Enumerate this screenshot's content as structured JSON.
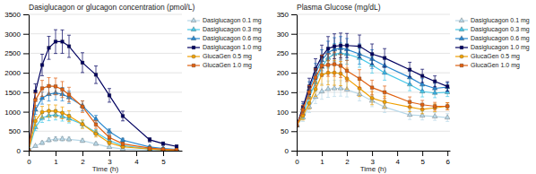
{
  "chart_data": [
    {
      "type": "line",
      "title": "Dasiglucagon or glucagon concentration (pmol/L)",
      "x_label": "Time (h)",
      "x": [
        0,
        0.25,
        0.5,
        0.75,
        1.0,
        1.25,
        1.5,
        2.0,
        2.5,
        3.0,
        3.5,
        4.5,
        5.0,
        5.5
      ],
      "series": [
        {
          "name": "Dasiglucagon 0.1 mg",
          "color": "#b8d8e8",
          "marker": "triangle",
          "values": [
            10,
            120,
            200,
            270,
            295,
            300,
            290,
            255,
            175,
            90,
            45,
            15,
            10,
            8
          ],
          "errors": [
            5,
            30,
            45,
            55,
            60,
            62,
            58,
            48,
            38,
            25,
            18,
            10,
            8,
            5
          ]
        },
        {
          "name": "Dasiglucagon 0.3 mg",
          "color": "#48c8e8",
          "marker": "triangle",
          "values": [
            10,
            600,
            840,
            900,
            920,
            880,
            820,
            680,
            470,
            260,
            130,
            45,
            25,
            15
          ],
          "errors": [
            5,
            85,
            115,
            130,
            130,
            120,
            108,
            88,
            68,
            48,
            32,
            18,
            12,
            8
          ]
        },
        {
          "name": "Dasiglucagon 0.6 mg",
          "color": "#2888d0",
          "marker": "triangle",
          "values": [
            10,
            1050,
            1350,
            1450,
            1480,
            1450,
            1370,
            1150,
            810,
            490,
            270,
            95,
            55,
            35
          ],
          "errors": [
            5,
            115,
            155,
            175,
            182,
            172,
            158,
            128,
            98,
            68,
            48,
            22,
            16,
            10
          ]
        },
        {
          "name": "Dasiglucagon 1.0 mg",
          "color": "#000060",
          "marker": "square",
          "values": [
            10,
            1520,
            2200,
            2640,
            2800,
            2800,
            2680,
            2260,
            1950,
            1420,
            890,
            280,
            180,
            110
          ],
          "errors": [
            5,
            195,
            275,
            295,
            305,
            300,
            285,
            255,
            225,
            175,
            125,
            55,
            42,
            30
          ]
        },
        {
          "name": "GlucaGen 0.5 mg",
          "color": "#f0a000",
          "marker": "circle",
          "values": [
            10,
            760,
            990,
            1020,
            1015,
            970,
            890,
            680,
            430,
            200,
            100,
            40,
            20,
            12
          ],
          "errors": [
            5,
            118,
            148,
            158,
            158,
            152,
            138,
            108,
            78,
            42,
            28,
            15,
            10,
            6
          ]
        },
        {
          "name": "GlucaGen 1.0 mg",
          "color": "#e06010",
          "marker": "square",
          "values": [
            10,
            1300,
            1600,
            1660,
            1650,
            1570,
            1440,
            1130,
            670,
            340,
            175,
            65,
            38,
            22
          ],
          "errors": [
            5,
            175,
            205,
            215,
            215,
            205,
            188,
            148,
            98,
            58,
            38,
            22,
            15,
            10
          ]
        }
      ],
      "xlim": [
        0,
        5.7
      ],
      "ylim": [
        0,
        3500
      ],
      "xticks": [
        0,
        1,
        2,
        3,
        4,
        5
      ],
      "yticks": [
        0,
        500,
        1000,
        1500,
        2000,
        2500,
        3000,
        3500
      ],
      "grid": true,
      "legend": "upper right"
    },
    {
      "type": "line",
      "title": "Plasma Glucose (mg/dL)",
      "x_label": "Time (h)",
      "x": [
        0,
        0.25,
        0.5,
        0.75,
        1.0,
        1.25,
        1.5,
        1.75,
        2.0,
        2.5,
        3.0,
        3.5,
        4.5,
        5.0,
        5.5,
        6.0
      ],
      "series": [
        {
          "name": "Dasiglucagon 0.1 mg",
          "color": "#b8d8e8",
          "marker": "triangle",
          "values": [
            65,
            85,
            112,
            138,
            152,
            158,
            160,
            160,
            157,
            145,
            128,
            112,
            92,
            90,
            88,
            85
          ],
          "errors": [
            3,
            10,
            14,
            17,
            20,
            21,
            21,
            20,
            19,
            17,
            15,
            14,
            12,
            11,
            10,
            10
          ]
        },
        {
          "name": "Dasiglucagon 0.3 mg",
          "color": "#48c8e8",
          "marker": "triangle",
          "values": [
            65,
            95,
            138,
            175,
            215,
            238,
            248,
            250,
            248,
            238,
            220,
            200,
            170,
            152,
            148,
            150
          ],
          "errors": [
            3,
            12,
            17,
            21,
            24,
            26,
            27,
            27,
            26,
            24,
            21,
            19,
            16,
            14,
            12,
            11
          ]
        },
        {
          "name": "Dasiglucagon 0.6 mg",
          "color": "#2888d0",
          "marker": "triangle",
          "values": [
            65,
            108,
            158,
            200,
            232,
            252,
            260,
            263,
            260,
            248,
            235,
            218,
            188,
            170,
            160,
            163
          ],
          "errors": [
            3,
            13,
            19,
            24,
            27,
            29,
            30,
            30,
            28,
            26,
            24,
            21,
            17,
            15,
            13,
            11
          ]
        },
        {
          "name": "Dasiglucagon 1.0 mg",
          "color": "#000060",
          "marker": "square",
          "values": [
            65,
            112,
            165,
            210,
            242,
            262,
            268,
            270,
            270,
            268,
            248,
            238,
            208,
            192,
            178,
            165
          ],
          "errors": [
            3,
            14,
            21,
            26,
            29,
            31,
            32,
            32,
            31,
            29,
            26,
            24,
            19,
            17,
            14,
            12
          ]
        },
        {
          "name": "GlucaGen 0.5 mg",
          "color": "#f0a000",
          "marker": "circle",
          "values": [
            65,
            90,
            122,
            158,
            195,
            200,
            200,
            198,
            185,
            160,
            135,
            125,
            112,
            106,
            110,
            114
          ],
          "errors": [
            3,
            11,
            15,
            19,
            27,
            31,
            32,
            31,
            27,
            21,
            17,
            15,
            12,
            11,
            10,
            9
          ]
        },
        {
          "name": "GlucaGen 1.0 mg",
          "color": "#e06010",
          "marker": "square",
          "values": [
            65,
            105,
            150,
            188,
            218,
            220,
            222,
            218,
            205,
            185,
            162,
            150,
            125,
            118,
            114,
            114
          ],
          "errors": [
            3,
            12,
            17,
            22,
            27,
            29,
            31,
            30,
            27,
            23,
            19,
            16,
            13,
            11,
            10,
            9
          ]
        }
      ],
      "xlim": [
        0,
        6.1
      ],
      "ylim": [
        0,
        350
      ],
      "xticks": [
        0,
        1,
        2,
        3,
        4,
        5,
        6
      ],
      "yticks": [
        0,
        50,
        100,
        150,
        200,
        250,
        300,
        350
      ],
      "grid": true,
      "legend": "upper right"
    }
  ]
}
